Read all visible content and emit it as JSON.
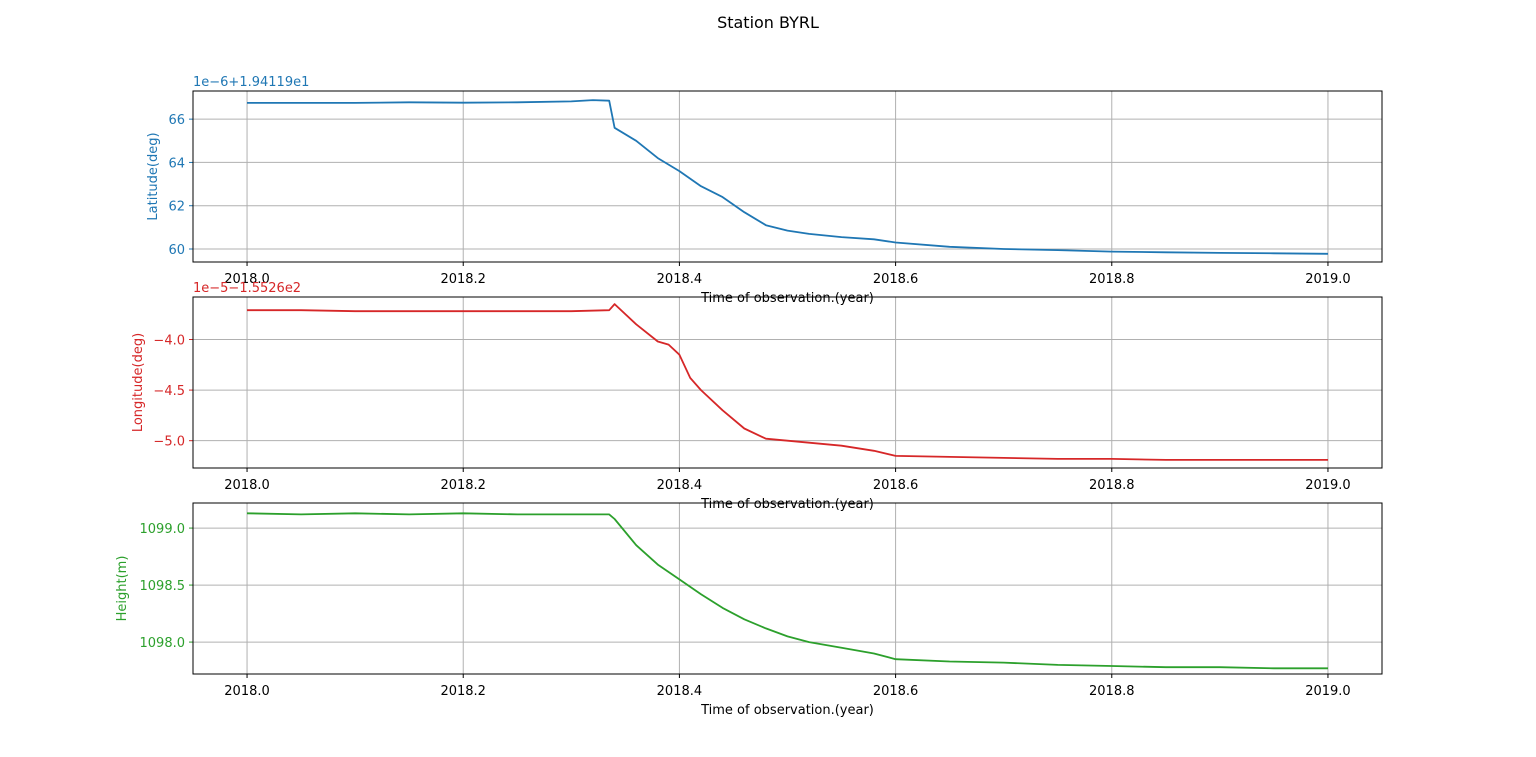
{
  "figure": {
    "title": "Station BYRL"
  },
  "chart_data": [
    {
      "type": "line",
      "ylabel": "Latitude(deg)",
      "xlabel": "Time of observation.(year)",
      "offset_text": "1e−6+1.94119e1",
      "color": "#1f77b4",
      "grid": true,
      "xlim": [
        1967.95,
        2019.05
      ],
      "ylim": [
        59.4,
        67.3
      ],
      "xticks": [
        "2018.0",
        "2018.2",
        "2018.4",
        "2018.6",
        "2018.8",
        "2019.0"
      ],
      "xtick_values": [
        2018.0,
        2018.2,
        2018.4,
        2018.6,
        2018.8,
        2019.0
      ],
      "yticks": [
        "60",
        "62",
        "64",
        "66"
      ],
      "ytick_values": [
        60,
        62,
        64,
        66
      ],
      "x": [
        2018.0,
        2018.05,
        2018.1,
        2018.15,
        2018.2,
        2018.25,
        2018.3,
        2018.32,
        2018.335,
        2018.34,
        2018.36,
        2018.38,
        2018.4,
        2018.42,
        2018.44,
        2018.46,
        2018.48,
        2018.5,
        2018.52,
        2018.55,
        2018.58,
        2018.6,
        2018.65,
        2018.7,
        2018.75,
        2018.8,
        2018.85,
        2018.9,
        2018.95,
        2019.0
      ],
      "y": [
        66.75,
        66.75,
        66.75,
        66.78,
        66.76,
        66.78,
        66.82,
        66.88,
        66.85,
        65.6,
        65.0,
        64.2,
        63.6,
        62.9,
        62.4,
        61.7,
        61.1,
        60.85,
        60.7,
        60.55,
        60.45,
        60.3,
        60.1,
        60.0,
        59.95,
        59.88,
        59.85,
        59.82,
        59.8,
        59.78
      ]
    },
    {
      "type": "line",
      "ylabel": "Longitude(deg)",
      "xlabel": "Time of observation.(year)",
      "offset_text": "1e−5−1.5526e2",
      "color": "#d62728",
      "grid": true,
      "ylim": [
        -5.27,
        -3.58
      ],
      "xticks": [
        "2018.0",
        "2018.2",
        "2018.4",
        "2018.6",
        "2018.8",
        "2019.0"
      ],
      "xtick_values": [
        2018.0,
        2018.2,
        2018.4,
        2018.6,
        2018.8,
        2019.0
      ],
      "yticks": [
        "−4.0",
        "−4.5",
        "−5.0"
      ],
      "ytick_values": [
        -4.0,
        -4.5,
        -5.0
      ],
      "x": [
        2018.0,
        2018.05,
        2018.1,
        2018.15,
        2018.2,
        2018.25,
        2018.3,
        2018.335,
        2018.34,
        2018.36,
        2018.38,
        2018.39,
        2018.4,
        2018.41,
        2018.42,
        2018.44,
        2018.46,
        2018.48,
        2018.5,
        2018.52,
        2018.55,
        2018.58,
        2018.6,
        2018.65,
        2018.7,
        2018.75,
        2018.8,
        2018.85,
        2018.9,
        2018.95,
        2019.0
      ],
      "y": [
        -3.71,
        -3.71,
        -3.72,
        -3.72,
        -3.72,
        -3.72,
        -3.72,
        -3.71,
        -3.65,
        -3.85,
        -4.02,
        -4.05,
        -4.15,
        -4.38,
        -4.5,
        -4.7,
        -4.88,
        -4.98,
        -5.0,
        -5.02,
        -5.05,
        -5.1,
        -5.15,
        -5.16,
        -5.17,
        -5.18,
        -5.18,
        -5.19,
        -5.19,
        -5.19,
        -5.19
      ]
    },
    {
      "type": "line",
      "ylabel": "Height(m)",
      "xlabel": "Time of observation.(year)",
      "offset_text": "",
      "color": "#2ca02c",
      "grid": true,
      "ylim": [
        1097.72,
        1099.22
      ],
      "xticks": [
        "2018.0",
        "2018.2",
        "2018.4",
        "2018.6",
        "2018.8",
        "2019.0"
      ],
      "xtick_values": [
        2018.0,
        2018.2,
        2018.4,
        2018.6,
        2018.8,
        2019.0
      ],
      "yticks": [
        "1098.0",
        "1098.5",
        "1099.0"
      ],
      "ytick_values": [
        1098.0,
        1098.5,
        1099.0
      ],
      "x": [
        2018.0,
        2018.05,
        2018.1,
        2018.15,
        2018.2,
        2018.25,
        2018.3,
        2018.335,
        2018.34,
        2018.36,
        2018.38,
        2018.4,
        2018.42,
        2018.44,
        2018.46,
        2018.48,
        2018.5,
        2018.52,
        2018.55,
        2018.58,
        2018.6,
        2018.65,
        2018.7,
        2018.75,
        2018.8,
        2018.85,
        2018.9,
        2018.95,
        2019.0
      ],
      "y": [
        1099.13,
        1099.12,
        1099.13,
        1099.12,
        1099.13,
        1099.12,
        1099.12,
        1099.12,
        1099.08,
        1098.85,
        1098.68,
        1098.55,
        1098.42,
        1098.3,
        1098.2,
        1098.12,
        1098.05,
        1098.0,
        1097.95,
        1097.9,
        1097.85,
        1097.83,
        1097.82,
        1097.8,
        1097.79,
        1097.78,
        1097.78,
        1097.77,
        1097.77
      ]
    }
  ]
}
